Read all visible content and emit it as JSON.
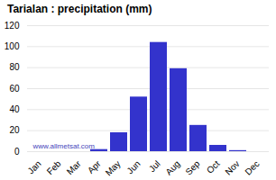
{
  "chart_data": {
    "type": "bar",
    "title": "Tarialan : precipitation (mm)",
    "categories": [
      "Jan",
      "Feb",
      "Mar",
      "Apr",
      "May",
      "Jun",
      "Jul",
      "Aug",
      "Sep",
      "Oct",
      "Nov",
      "Dec"
    ],
    "values": [
      0,
      0,
      0,
      2,
      18,
      52,
      104,
      79,
      25,
      6,
      1,
      0
    ],
    "color": "#3333cc",
    "ylim": [
      0,
      120
    ],
    "yticks": [
      0,
      20,
      40,
      60,
      80,
      100,
      120
    ],
    "grid": true,
    "annotations": [
      "www.allmetsat.com"
    ]
  }
}
